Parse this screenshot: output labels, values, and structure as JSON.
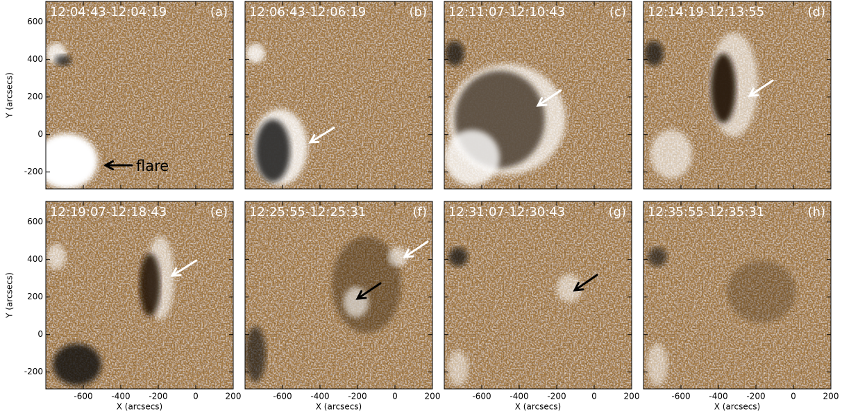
{
  "panels": [
    {
      "time": "12:04:43-12:04:19",
      "label": "(a)"
    },
    {
      "time": "12:06:43-12:06:19",
      "label": "(b)"
    },
    {
      "time": "12:11:07-12:10:43",
      "label": "(c)"
    },
    {
      "time": "12:14:19-12:13:55",
      "label": "(d)"
    },
    {
      "time": "12:19:07-12:18:43",
      "label": "(e)"
    },
    {
      "time": "12:25:55-12:25:31",
      "label": "(f)"
    },
    {
      "time": "12:31:07-12:30:43",
      "label": "(g)"
    },
    {
      "time": "12:35:55-12:35:31",
      "label": "(h)"
    }
  ],
  "annotation": "flare",
  "axes": {
    "x_label": "X (arcsecs)",
    "y_label": "Y (arcsecs)",
    "xticks": [
      -600,
      -400,
      -200,
      0,
      200
    ],
    "yticks": [
      600,
      400,
      200,
      0,
      -200
    ],
    "xlim": [
      -800,
      200
    ],
    "ylim": [
      -290,
      710
    ]
  }
}
